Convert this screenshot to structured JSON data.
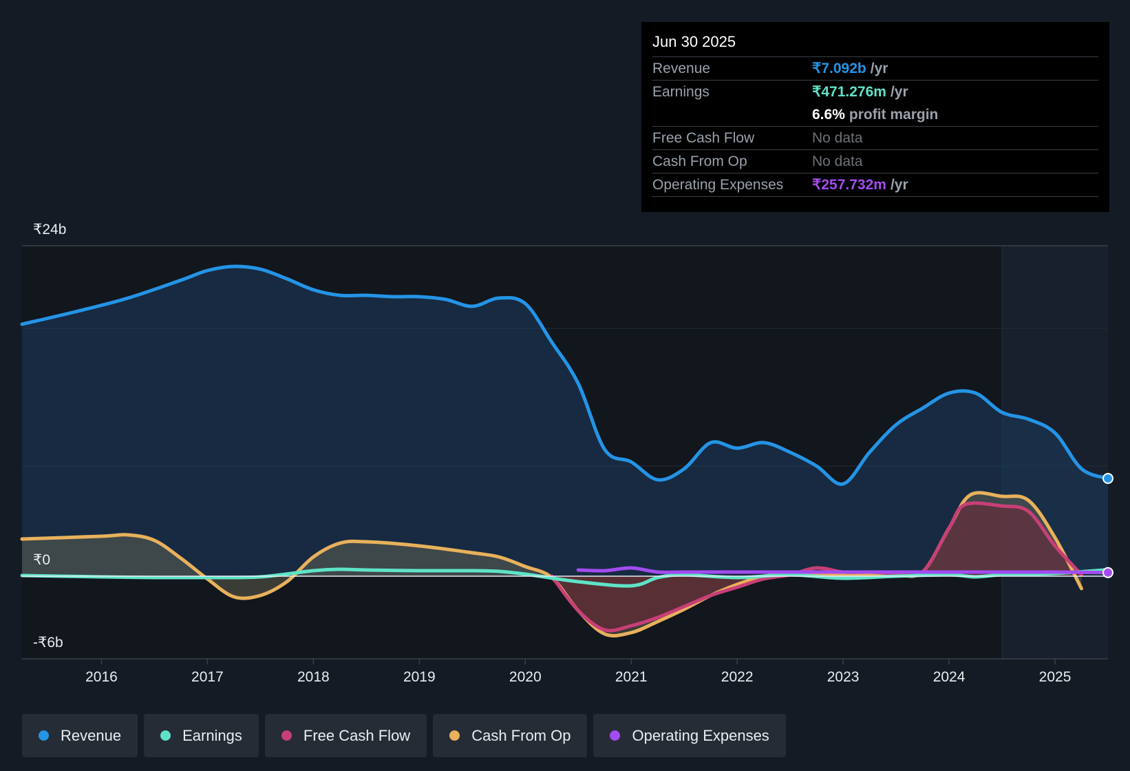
{
  "tooltip": {
    "date": "Jun 30 2025",
    "revenue_label": "Revenue",
    "revenue_value": "₹7.092b",
    "earnings_label": "Earnings",
    "earnings_value": "₹471.276m",
    "margin_value": "6.6%",
    "margin_label": "profit margin",
    "fcf_label": "Free Cash Flow",
    "fcf_value": "No data",
    "cfo_label": "Cash From Op",
    "cfo_value": "No data",
    "opex_label": "Operating Expenses",
    "opex_value": "₹257.732m",
    "unit": "/yr"
  },
  "legend": [
    {
      "label": "Revenue",
      "color": "#2494e6"
    },
    {
      "label": "Earnings",
      "color": "#5fe3c8"
    },
    {
      "label": "Free Cash Flow",
      "color": "#c83f77"
    },
    {
      "label": "Cash From Op",
      "color": "#e8b15c"
    },
    {
      "label": "Operating Expenses",
      "color": "#a34cf0"
    }
  ],
  "chart_data": {
    "type": "area",
    "y_tick_labels": [
      "₹24b",
      "₹0",
      "-₹6b"
    ],
    "ylim": [
      -6,
      24
    ],
    "xlim": [
      2015.25,
      2025.5
    ],
    "x_tick_labels": [
      "2016",
      "2017",
      "2018",
      "2019",
      "2020",
      "2021",
      "2022",
      "2023",
      "2024",
      "2025"
    ],
    "x_ticks": [
      2016,
      2017,
      2018,
      2019,
      2020,
      2021,
      2022,
      2023,
      2024,
      2025
    ],
    "forecast_start": 2024.5,
    "series": [
      {
        "name": "Revenue",
        "color": "#2494e6",
        "x": [
          2015.25,
          2015.75,
          2016.25,
          2016.75,
          2017.0,
          2017.25,
          2017.5,
          2017.75,
          2018.0,
          2018.25,
          2018.5,
          2018.75,
          2019.0,
          2019.25,
          2019.5,
          2019.75,
          2020.0,
          2020.25,
          2020.5,
          2020.75,
          2021.0,
          2021.25,
          2021.5,
          2021.75,
          2022.0,
          2022.25,
          2022.5,
          2022.75,
          2023.0,
          2023.25,
          2023.5,
          2023.75,
          2024.0,
          2024.25,
          2024.5,
          2024.75,
          2025.0,
          2025.25,
          2025.5
        ],
        "values": [
          18.3,
          19.2,
          20.2,
          21.5,
          22.2,
          22.5,
          22.3,
          21.6,
          20.8,
          20.4,
          20.4,
          20.3,
          20.3,
          20.1,
          19.6,
          20.2,
          19.8,
          17.0,
          14.0,
          9.2,
          8.3,
          7.0,
          7.8,
          9.7,
          9.3,
          9.7,
          9.0,
          8.0,
          6.7,
          9.0,
          11.0,
          12.2,
          13.3,
          13.3,
          11.9,
          11.4,
          10.4,
          7.8,
          7.1
        ]
      },
      {
        "name": "Earnings",
        "color": "#5fe3c8",
        "x": [
          2015.25,
          2016.0,
          2016.5,
          2017.0,
          2017.5,
          2018.0,
          2018.25,
          2018.5,
          2019.0,
          2019.5,
          2019.75,
          2020.0,
          2020.5,
          2021.0,
          2021.25,
          2021.5,
          2022.0,
          2022.5,
          2023.0,
          2023.5,
          2024.0,
          2024.25,
          2024.5,
          2025.0,
          2025.5
        ],
        "values": [
          0.05,
          -0.05,
          -0.1,
          -0.1,
          -0.05,
          0.4,
          0.5,
          0.45,
          0.4,
          0.4,
          0.35,
          0.15,
          -0.4,
          -0.7,
          -0.1,
          0.1,
          -0.1,
          0.1,
          -0.15,
          0.0,
          0.1,
          -0.05,
          0.1,
          0.2,
          0.47
        ]
      },
      {
        "name": "Free Cash Flow",
        "color": "#c83f77",
        "x": [
          2020.25,
          2020.5,
          2020.75,
          2021.0,
          2021.25,
          2021.5,
          2021.75,
          2022.0,
          2022.25,
          2022.5,
          2022.75,
          2023.0,
          2023.25,
          2023.5,
          2023.75,
          2024.0,
          2024.15,
          2024.5,
          2024.75,
          2025.0,
          2025.25
        ],
        "values": [
          0.0,
          -2.5,
          -3.9,
          -3.6,
          -3.0,
          -2.2,
          -1.4,
          -0.8,
          -0.2,
          0.1,
          0.6,
          0.3,
          0.3,
          0.2,
          0.3,
          3.5,
          5.2,
          5.1,
          4.7,
          2.2,
          0.1
        ]
      },
      {
        "name": "Cash From Op",
        "color": "#e8b15c",
        "x": [
          2015.25,
          2016.0,
          2016.25,
          2016.5,
          2016.75,
          2017.0,
          2017.25,
          2017.5,
          2017.75,
          2018.0,
          2018.25,
          2018.5,
          2019.0,
          2019.5,
          2019.75,
          2020.0,
          2020.25,
          2020.5,
          2020.75,
          2021.0,
          2021.25,
          2021.5,
          2021.75,
          2022.0,
          2022.25,
          2022.5,
          2022.75,
          2023.0,
          2023.25,
          2023.5,
          2023.75,
          2024.0,
          2024.2,
          2024.5,
          2024.75,
          2025.0,
          2025.25
        ],
        "values": [
          2.7,
          2.9,
          3.0,
          2.6,
          1.3,
          -0.2,
          -1.5,
          -1.4,
          -0.4,
          1.4,
          2.4,
          2.5,
          2.2,
          1.7,
          1.4,
          0.7,
          -0.1,
          -2.5,
          -4.2,
          -4.1,
          -3.3,
          -2.4,
          -1.4,
          -0.6,
          0.0,
          0.1,
          0.1,
          0.1,
          0.1,
          0.1,
          0.3,
          3.5,
          5.9,
          5.8,
          5.5,
          2.8,
          -0.9
        ]
      },
      {
        "name": "Operating Expenses",
        "color": "#a34cf0",
        "x": [
          2020.5,
          2020.75,
          2021.0,
          2021.25,
          2021.5,
          2022.0,
          2022.5,
          2023.0,
          2023.5,
          2024.0,
          2024.5,
          2025.0,
          2025.5
        ],
        "values": [
          0.45,
          0.4,
          0.6,
          0.3,
          0.3,
          0.3,
          0.3,
          0.3,
          0.3,
          0.3,
          0.3,
          0.3,
          0.26
        ]
      }
    ]
  }
}
